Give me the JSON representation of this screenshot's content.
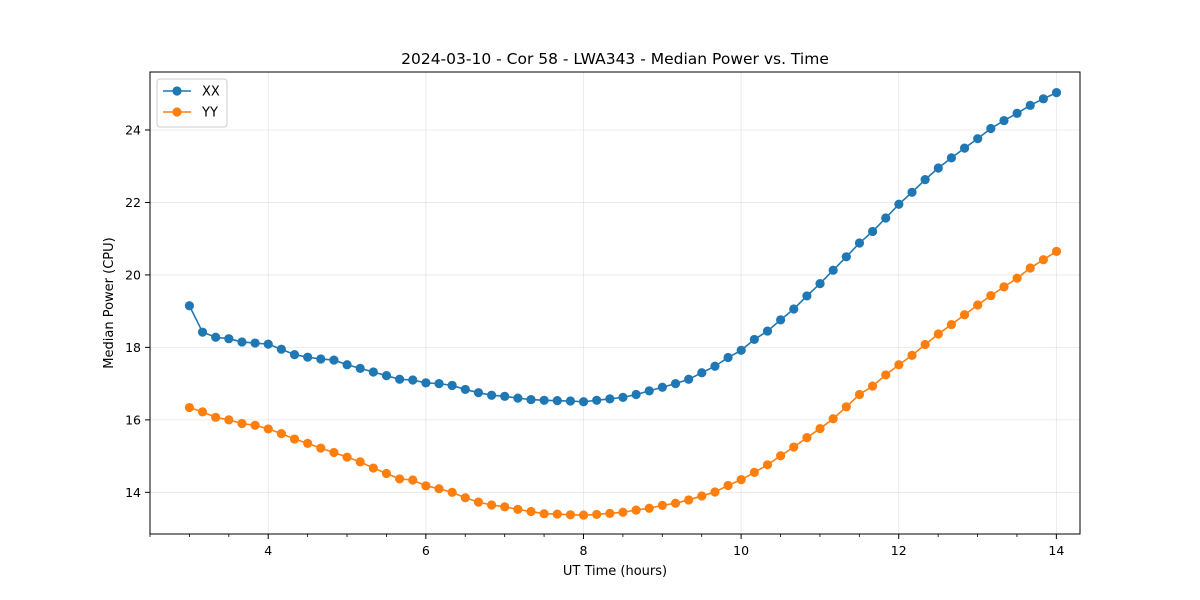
{
  "chart_data": {
    "type": "line",
    "title": "2024-03-10 - Cor 58 - LWA343 - Median Power vs. Time",
    "xlabel": "UT Time (hours)",
    "ylabel": "Median Power (CPU)",
    "xlim": [
      2.5,
      14.3
    ],
    "ylim": [
      12.85,
      25.6
    ],
    "xticks": [
      4,
      6,
      8,
      10,
      12,
      14
    ],
    "xticklabels": [
      "4",
      "6",
      "8",
      "10",
      "12",
      "14"
    ],
    "yticks": [
      14,
      16,
      18,
      20,
      22,
      24
    ],
    "yticklabels": [
      "14",
      "16",
      "18",
      "20",
      "22",
      "24"
    ],
    "x_minor_step": 0.5,
    "grid": true,
    "legend_position": "top-left",
    "x_start": 3.0,
    "x_step": 0.1667,
    "series": [
      {
        "name": "XX",
        "color": "#1f77b4",
        "marker": "circle",
        "values": [
          19.15,
          18.42,
          18.28,
          18.24,
          18.15,
          18.12,
          18.09,
          17.95,
          17.8,
          17.73,
          17.68,
          17.65,
          17.52,
          17.42,
          17.32,
          17.22,
          17.12,
          17.1,
          17.02,
          17.0,
          16.95,
          16.84,
          16.75,
          16.68,
          16.65,
          16.6,
          16.56,
          16.54,
          16.53,
          16.52,
          16.5,
          16.54,
          16.58,
          16.62,
          16.7,
          16.8,
          16.9,
          17.0,
          17.12,
          17.3,
          17.48,
          17.72,
          17.92,
          18.22,
          18.45,
          18.76,
          19.06,
          19.42,
          19.76,
          20.13,
          20.5,
          20.88,
          21.2,
          21.57,
          21.95,
          22.28,
          22.63,
          22.95,
          23.23,
          23.5,
          23.76,
          24.04,
          24.26,
          24.46,
          24.68,
          24.86,
          25.03
        ]
      },
      {
        "name": "YY",
        "color": "#ff7f0e",
        "marker": "circle",
        "values": [
          16.34,
          16.22,
          16.07,
          16.0,
          15.9,
          15.85,
          15.75,
          15.62,
          15.47,
          15.35,
          15.22,
          15.1,
          14.97,
          14.84,
          14.67,
          14.52,
          14.37,
          14.34,
          14.18,
          14.1,
          14.0,
          13.85,
          13.73,
          13.65,
          13.6,
          13.53,
          13.47,
          13.41,
          13.4,
          13.38,
          13.37,
          13.39,
          13.42,
          13.45,
          13.51,
          13.56,
          13.64,
          13.7,
          13.79,
          13.9,
          14.01,
          14.19,
          14.35,
          14.55,
          14.76,
          15.01,
          15.25,
          15.51,
          15.76,
          16.03,
          16.36,
          16.7,
          16.93,
          17.24,
          17.52,
          17.78,
          18.08,
          18.37,
          18.63,
          18.9,
          19.17,
          19.43,
          19.67,
          19.91,
          20.19,
          20.42,
          20.65
        ]
      }
    ]
  }
}
